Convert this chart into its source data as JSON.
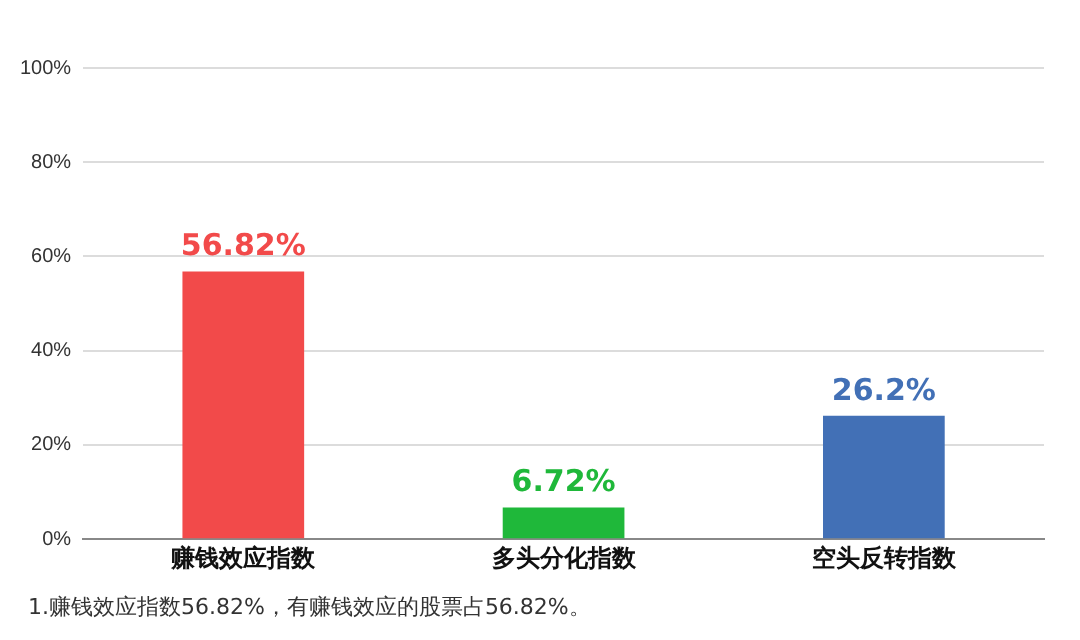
{
  "chart_data": {
    "type": "bar",
    "categories": [
      "赚钱效应指数",
      "多头分化指数",
      "空头反转指数"
    ],
    "values": [
      56.82,
      6.72,
      26.2
    ],
    "colors": [
      "#f24a4a",
      "#1fb83a",
      "#4270b6"
    ],
    "value_labels": [
      "56.82%",
      "6.72%",
      "26.2%"
    ],
    "ylim": [
      0,
      100
    ],
    "yticks": [
      {
        "value": 0,
        "label": "0%"
      },
      {
        "value": 20,
        "label": "20%"
      },
      {
        "value": 40,
        "label": "40%"
      },
      {
        "value": 60,
        "label": "60%"
      },
      {
        "value": 80,
        "label": "80%"
      },
      {
        "value": 100,
        "label": "100%"
      }
    ],
    "grid": "y",
    "legend": false,
    "annotations": [
      "1.赚钱效应指数56.82%，有赚钱效应的股票占56.82%。"
    ]
  }
}
